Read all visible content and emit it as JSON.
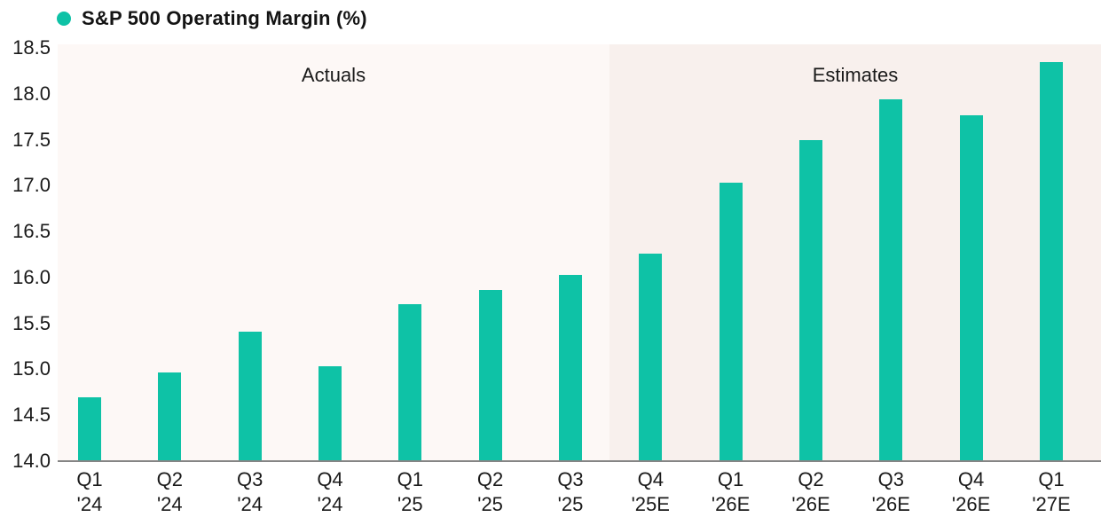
{
  "legend": {
    "label": "S&P 500 Operating Margin (%)",
    "dot_color": "#0ec2a6"
  },
  "colors": {
    "bar": "#0ec2a6",
    "background_actuals": "#fdf8f6",
    "background_estimates": "#f8f0ed",
    "axis_line": "#858585",
    "text": "#1a1a1a"
  },
  "chart_data": {
    "type": "bar",
    "title": "S&P 500 Operating Margin (%)",
    "categories": [
      "Q1 '24",
      "Q2 '24",
      "Q3 '24",
      "Q4 '24",
      "Q1 '25",
      "Q2 '25",
      "Q3 '25",
      "Q4 '25E",
      "Q1 '26E",
      "Q2 '26E",
      "Q3 '26E",
      "Q4 '26E",
      "Q1 '27E"
    ],
    "category_lines": [
      [
        "Q1",
        "'24"
      ],
      [
        "Q2",
        "'24"
      ],
      [
        "Q3",
        "'24"
      ],
      [
        "Q4",
        "'24"
      ],
      [
        "Q1",
        "'25"
      ],
      [
        "Q2",
        "'25"
      ],
      [
        "Q3",
        "'25"
      ],
      [
        "Q4",
        "'25E"
      ],
      [
        "Q1",
        "'26E"
      ],
      [
        "Q2",
        "'26E"
      ],
      [
        "Q3",
        "'26E"
      ],
      [
        "Q4",
        "'26E"
      ],
      [
        "Q1",
        "'27E"
      ]
    ],
    "values": [
      14.7,
      14.97,
      15.41,
      15.03,
      15.71,
      15.86,
      16.03,
      16.26,
      17.03,
      17.5,
      17.94,
      17.77,
      18.35
    ],
    "ylim": [
      14.0,
      18.5
    ],
    "ytick_step": 0.5,
    "ytick_labels": [
      "14.0",
      "14.5",
      "15.0",
      "15.5",
      "16.0",
      "16.5",
      "17.0",
      "17.5",
      "18.0",
      "18.5"
    ],
    "grid": false,
    "legend_position": "top-left",
    "regions": [
      {
        "label": "Actuals",
        "start_index": 0,
        "end_index": 6
      },
      {
        "label": "Estimates",
        "start_index": 7,
        "end_index": 12
      }
    ]
  }
}
